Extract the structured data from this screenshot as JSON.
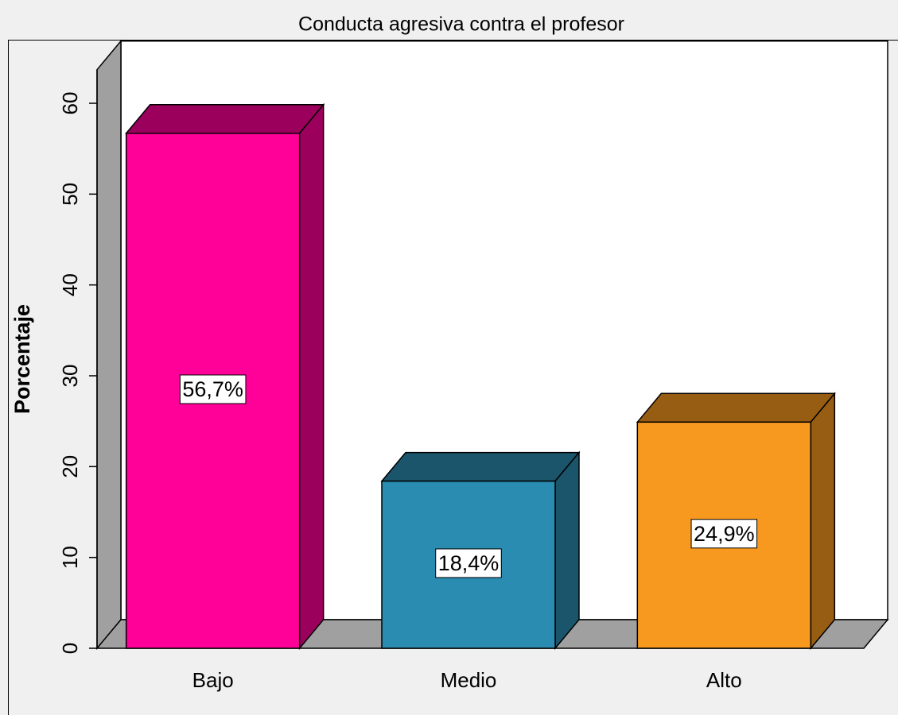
{
  "chart_data": {
    "type": "bar3d",
    "title": "Conducta agresiva contra el profesor",
    "y_label": "Porcentaje",
    "categories": [
      "Bajo",
      "Medio",
      "Alto"
    ],
    "values": [
      56.7,
      18.4,
      24.9
    ],
    "value_labels": [
      "56,7%",
      "18,4%",
      "24,9%"
    ],
    "colors": [
      "#ff0099",
      "#2a8cb0",
      "#f7981f"
    ],
    "ylim": [
      0,
      63.7
    ],
    "yticks": [
      0,
      10,
      20,
      30,
      40,
      50,
      60
    ]
  }
}
